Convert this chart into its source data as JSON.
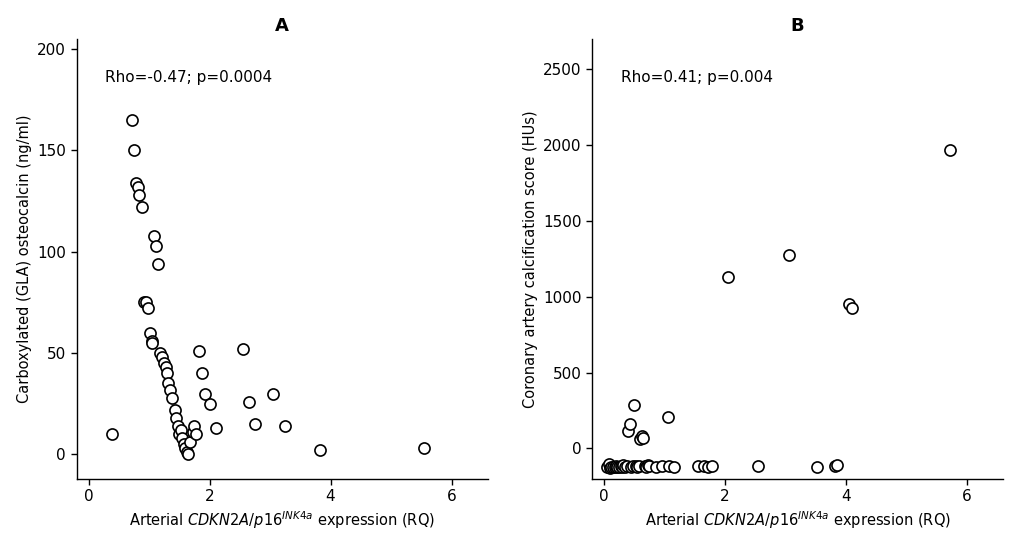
{
  "panel_A": {
    "title": "A",
    "annotation": "Rho=-0.47; p=0.0004",
    "ylabel": "Carboxylated (GLA) osteocalcin (ng/ml)",
    "xlim": [
      -0.2,
      6.6
    ],
    "ylim": [
      -12,
      205
    ],
    "xticks": [
      0,
      2,
      4,
      6
    ],
    "yticks": [
      0,
      50,
      100,
      150,
      200
    ],
    "x": [
      0.38,
      0.72,
      0.75,
      0.78,
      0.82,
      0.83,
      0.88,
      0.92,
      0.95,
      0.98,
      1.02,
      1.05,
      1.05,
      1.08,
      1.12,
      1.15,
      1.18,
      1.22,
      1.25,
      1.28,
      1.3,
      1.32,
      1.35,
      1.38,
      1.42,
      1.45,
      1.48,
      1.5,
      1.52,
      1.55,
      1.58,
      1.6,
      1.62,
      1.65,
      1.68,
      1.72,
      1.75,
      1.78,
      1.82,
      1.88,
      1.92,
      2.0,
      2.1,
      2.55,
      2.65,
      2.75,
      3.05,
      3.25,
      3.82,
      5.55
    ],
    "y": [
      10,
      165,
      150,
      134,
      132,
      128,
      122,
      75,
      75,
      72,
      60,
      56,
      55,
      108,
      103,
      94,
      50,
      48,
      45,
      43,
      40,
      35,
      32,
      28,
      22,
      18,
      14,
      10,
      12,
      8,
      5,
      3,
      1,
      0,
      6,
      11,
      14,
      10,
      51,
      40,
      30,
      25,
      13,
      52,
      26,
      15,
      30,
      14,
      2,
      3
    ]
  },
  "panel_B": {
    "title": "B",
    "annotation": "Rho=0.41; p=0.004",
    "ylabel": "Coronary artery calcification score (HUs)",
    "xlim": [
      -0.2,
      6.6
    ],
    "ylim": [
      -200,
      2700
    ],
    "xticks": [
      0,
      2,
      4,
      6
    ],
    "yticks": [
      0,
      500,
      1000,
      1500,
      2000,
      2500
    ],
    "x": [
      0.05,
      0.08,
      0.1,
      0.12,
      0.15,
      0.18,
      0.2,
      0.22,
      0.25,
      0.28,
      0.3,
      0.32,
      0.35,
      0.38,
      0.4,
      0.42,
      0.45,
      0.48,
      0.5,
      0.52,
      0.55,
      0.58,
      0.6,
      0.62,
      0.65,
      0.68,
      0.7,
      0.72,
      0.75,
      0.85,
      0.95,
      1.05,
      1.08,
      1.15,
      1.55,
      1.65,
      1.72,
      1.78,
      2.05,
      2.55,
      3.05,
      3.52,
      3.82,
      3.85,
      4.05,
      4.1,
      5.72
    ],
    "y": [
      -120,
      -100,
      -130,
      -120,
      -125,
      -120,
      -115,
      -120,
      -120,
      -115,
      -120,
      -110,
      -120,
      -115,
      115,
      160,
      -120,
      -115,
      285,
      -115,
      -120,
      -115,
      60,
      80,
      65,
      -115,
      -120,
      -110,
      -115,
      -120,
      -115,
      205,
      -115,
      -120,
      -115,
      -115,
      -120,
      -115,
      1130,
      -115,
      1275,
      -120,
      -115,
      -110,
      955,
      925,
      1965
    ]
  },
  "xlabel": "Arterial $\\mathit{CDKN2A/p16}^{\\mathit{INK4a}}$ expression (RQ)",
  "marker_size": 8,
  "marker_color": "white",
  "marker_edge_color": "black",
  "marker_edge_width": 1.2,
  "bg_color": "white"
}
